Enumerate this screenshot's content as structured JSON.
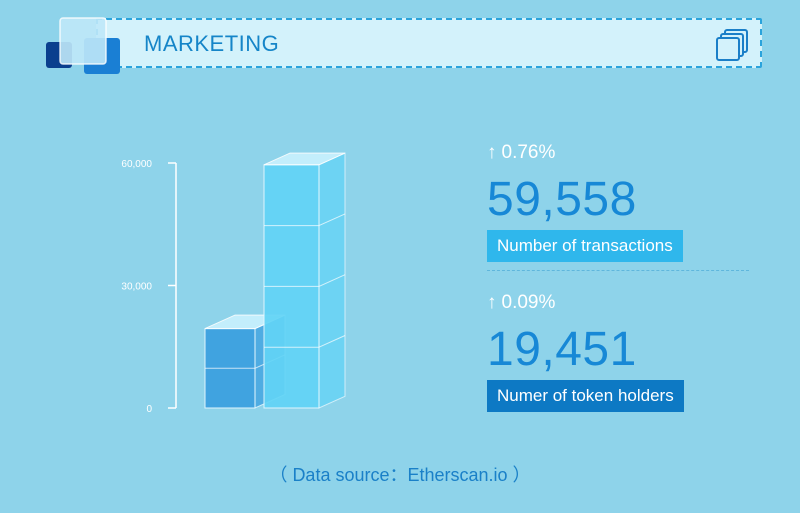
{
  "header": {
    "title": "MARKETING"
  },
  "icons": {
    "logo": "stacked-squares-logo",
    "copy": "copy-icon"
  },
  "chart_data": {
    "type": "bar",
    "categories": [
      "Number of token holders",
      "Number of transactions"
    ],
    "values": [
      19451,
      59558
    ],
    "ylim": [
      0,
      60000
    ],
    "ticks": [
      "0",
      "30,000",
      "60,000"
    ],
    "tick_values": [
      0,
      30000,
      60000
    ],
    "colors": [
      "#3a9fe0",
      "#62d4f6"
    ]
  },
  "stats": [
    {
      "change": "0.76%",
      "value": "59,558",
      "label": "Number of  transactions"
    },
    {
      "change": "0.09%",
      "value": "19,451",
      "label": "Numer of token holders"
    }
  ],
  "footer": {
    "source": "（ Data source：Etherscan.io ）"
  }
}
